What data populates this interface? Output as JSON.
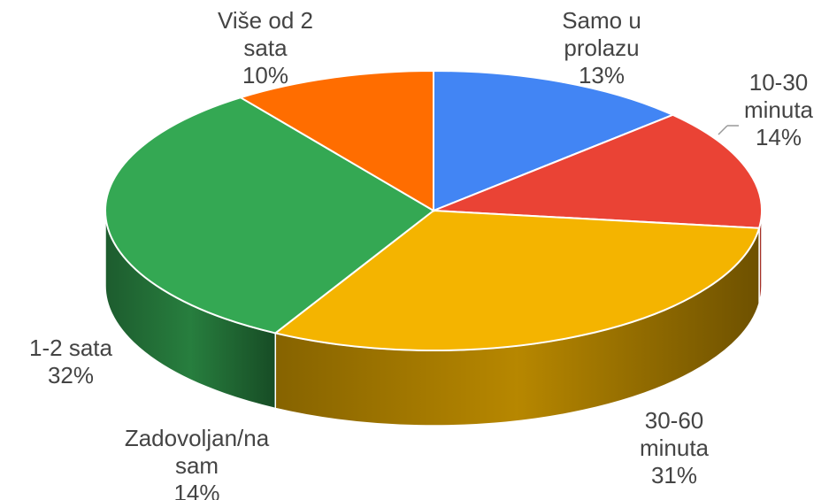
{
  "chart_data": {
    "type": "pie",
    "categories": [
      "Samo u prolazu",
      "10-30 minuta",
      "30-60 minuta",
      "1-2 sata",
      "Više od 2 sata"
    ],
    "values": [
      13,
      14,
      31,
      32,
      10
    ],
    "value_labels": [
      "13%",
      "14%",
      "31%",
      "32%",
      "10%"
    ],
    "colors": [
      "#4285f4",
      "#ea4335",
      "#f4b400",
      "#34a853",
      "#ff6d00"
    ],
    "annotations": [
      "Zadovoljan/na sam",
      "14%"
    ]
  }
}
